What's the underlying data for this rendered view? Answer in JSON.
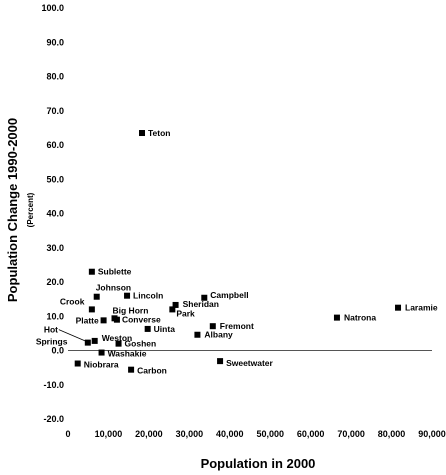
{
  "chart_data": {
    "type": "scatter",
    "xlabel": "Population in 2000",
    "ylabel": "Population Change 1990-2000",
    "ylabel_unit": "(Percent)",
    "xlim": [
      0,
      90000
    ],
    "ylim": [
      -20,
      100
    ],
    "x_ticks": [
      0,
      10000,
      20000,
      30000,
      40000,
      50000,
      60000,
      70000,
      80000,
      90000
    ],
    "x_tick_labels": [
      "0",
      "10,000",
      "20,000",
      "30,000",
      "40,000",
      "50,000",
      "60,000",
      "70,000",
      "80,000",
      "90,000"
    ],
    "y_ticks": [
      -20,
      -10,
      0,
      10,
      20,
      30,
      40,
      50,
      60,
      70,
      80,
      90,
      100
    ],
    "y_tick_labels": [
      "-20.0",
      "-10.0",
      "0.0",
      "10.0",
      "20.0",
      "30.0",
      "40.0",
      "50.0",
      "60.0",
      "70.0",
      "80.0",
      "90.0",
      "100.0"
    ],
    "grid": false,
    "legend": "none",
    "points": [
      {
        "name": "Teton",
        "x": 18300,
        "y": 63.5
      },
      {
        "name": "Sublette",
        "x": 5900,
        "y": 23.0
      },
      {
        "name": "Johnson",
        "x": 7100,
        "y": 15.7
      },
      {
        "name": "Lincoln",
        "x": 14600,
        "y": 16.0
      },
      {
        "name": "Campbell",
        "x": 33700,
        "y": 15.4
      },
      {
        "name": "Laramie",
        "x": 81600,
        "y": 12.5
      },
      {
        "name": "Crook",
        "x": 5900,
        "y": 12.0
      },
      {
        "name": "Sheridan",
        "x": 26600,
        "y": 13.3
      },
      {
        "name": "Park",
        "x": 25800,
        "y": 12.0
      },
      {
        "name": "Natrona",
        "x": 66500,
        "y": 9.6
      },
      {
        "name": "Big Horn",
        "x": 11500,
        "y": 9.4
      },
      {
        "name": "Platte",
        "x": 8800,
        "y": 8.8
      },
      {
        "name": "Converse",
        "x": 12100,
        "y": 9.0
      },
      {
        "name": "Fremont",
        "x": 35800,
        "y": 7.1
      },
      {
        "name": "Uinta",
        "x": 19700,
        "y": 6.3
      },
      {
        "name": "Albany",
        "x": 32000,
        "y": 4.6
      },
      {
        "name": "Weston",
        "x": 6600,
        "y": 2.8
      },
      {
        "name": "Hot Springs",
        "x": 4900,
        "y": 2.3
      },
      {
        "name": "Goshen",
        "x": 12500,
        "y": 2.0
      },
      {
        "name": "Washakie",
        "x": 8300,
        "y": -0.6
      },
      {
        "name": "Sweetwater",
        "x": 37600,
        "y": -3.1
      },
      {
        "name": "Niobrara",
        "x": 2400,
        "y": -3.8
      },
      {
        "name": "Carbon",
        "x": 15600,
        "y": -5.6
      }
    ]
  }
}
